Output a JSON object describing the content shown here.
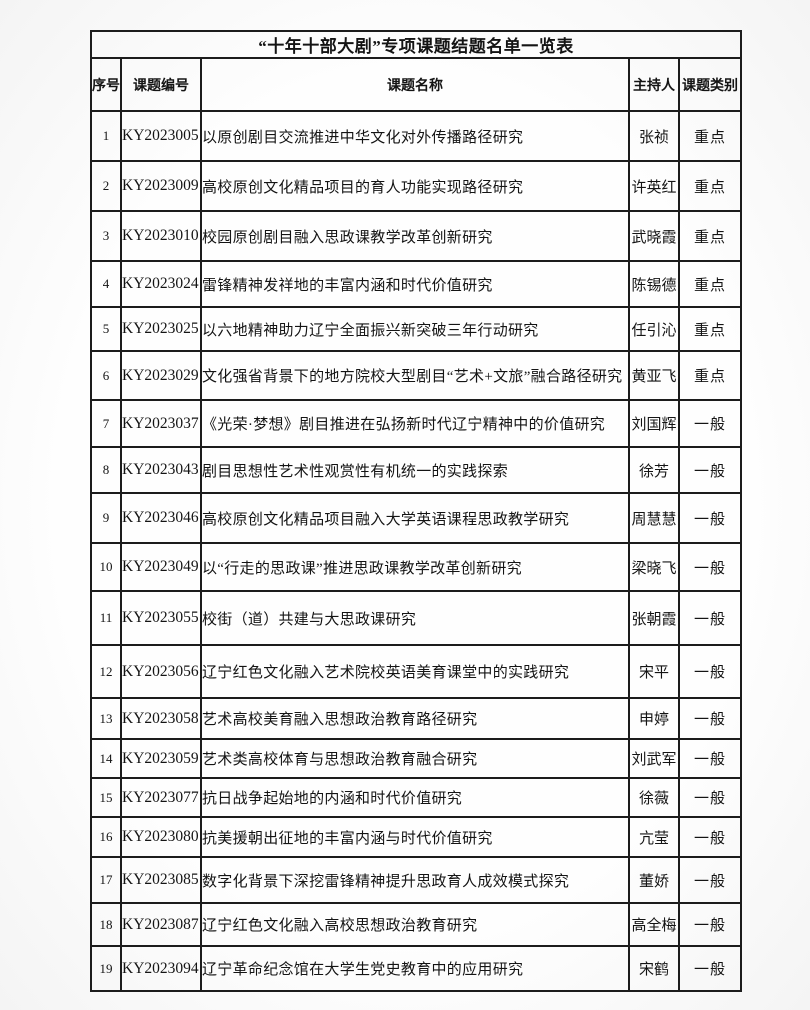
{
  "title": "“十年十部大剧”专项课题结题名单一览表",
  "columns": [
    "序号",
    "课题编号",
    "课题名称",
    "主持人",
    "课题类别"
  ],
  "rows": [
    {
      "no": "1",
      "code": "KY2023005",
      "name": "以原创剧目交流推进中华文化对外传播路径研究",
      "host": "张祯",
      "category": "重点"
    },
    {
      "no": "2",
      "code": "KY2023009",
      "name": "高校原创文化精品项目的育人功能实现路径研究",
      "host": "许英红",
      "category": "重点"
    },
    {
      "no": "3",
      "code": "KY2023010",
      "name": "校园原创剧目融入思政课教学改革创新研究",
      "host": "武晓霞",
      "category": "重点"
    },
    {
      "no": "4",
      "code": "KY2023024",
      "name": "雷锋精神发祥地的丰富内涵和时代价值研究",
      "host": "陈锡德",
      "category": "重点"
    },
    {
      "no": "5",
      "code": "KY2023025",
      "name": "以六地精神助力辽宁全面振兴新突破三年行动研究",
      "host": "任引沁",
      "category": "重点"
    },
    {
      "no": "6",
      "code": "KY2023029",
      "name": "文化强省背景下的地方院校大型剧目“艺术+文旅”融合路径研究",
      "host": "黄亚飞",
      "category": "重点"
    },
    {
      "no": "7",
      "code": "KY2023037",
      "name": "《光荣·梦想》剧目推进在弘扬新时代辽宁精神中的价值研究",
      "host": "刘国辉",
      "category": "一般"
    },
    {
      "no": "8",
      "code": "KY2023043",
      "name": "剧目思想性艺术性观赏性有机统一的实践探索",
      "host": "徐芳",
      "category": "一般"
    },
    {
      "no": "9",
      "code": "KY2023046",
      "name": "高校原创文化精品项目融入大学英语课程思政教学研究",
      "host": "周慧慧",
      "category": "一般"
    },
    {
      "no": "10",
      "code": "KY2023049",
      "name": "以“行走的思政课”推进思政课教学改革创新研究",
      "host": "梁晓飞",
      "category": "一般"
    },
    {
      "no": "11",
      "code": "KY2023055",
      "name": "校街（道）共建与大思政课研究",
      "host": "张朝霞",
      "category": "一般"
    },
    {
      "no": "12",
      "code": "KY2023056",
      "name": "辽宁红色文化融入艺术院校英语美育课堂中的实践研究",
      "host": "宋平",
      "category": "一般"
    },
    {
      "no": "13",
      "code": "KY2023058",
      "name": "艺术高校美育融入思想政治教育路径研究",
      "host": "申婷",
      "category": "一般"
    },
    {
      "no": "14",
      "code": "KY2023059",
      "name": "艺术类高校体育与思想政治教育融合研究",
      "host": "刘武军",
      "category": "一般"
    },
    {
      "no": "15",
      "code": "KY2023077",
      "name": "抗日战争起始地的内涵和时代价值研究",
      "host": "徐薇",
      "category": "一般"
    },
    {
      "no": "16",
      "code": "KY2023080",
      "name": "抗美援朝出征地的丰富内涵与时代价值研究",
      "host": "亢莹",
      "category": "一般"
    },
    {
      "no": "17",
      "code": "KY2023085",
      "name": "数字化背景下深挖雷锋精神提升思政育人成效模式探究",
      "host": "董娇",
      "category": "一般"
    },
    {
      "no": "18",
      "code": "KY2023087",
      "name": "辽宁红色文化融入高校思想政治教育研究",
      "host": "高全梅",
      "category": "一般"
    },
    {
      "no": "19",
      "code": "KY2023094",
      "name": "辽宁革命纪念馆在大学生党史教育中的应用研究",
      "host": "宋鹤",
      "category": "一般"
    }
  ]
}
